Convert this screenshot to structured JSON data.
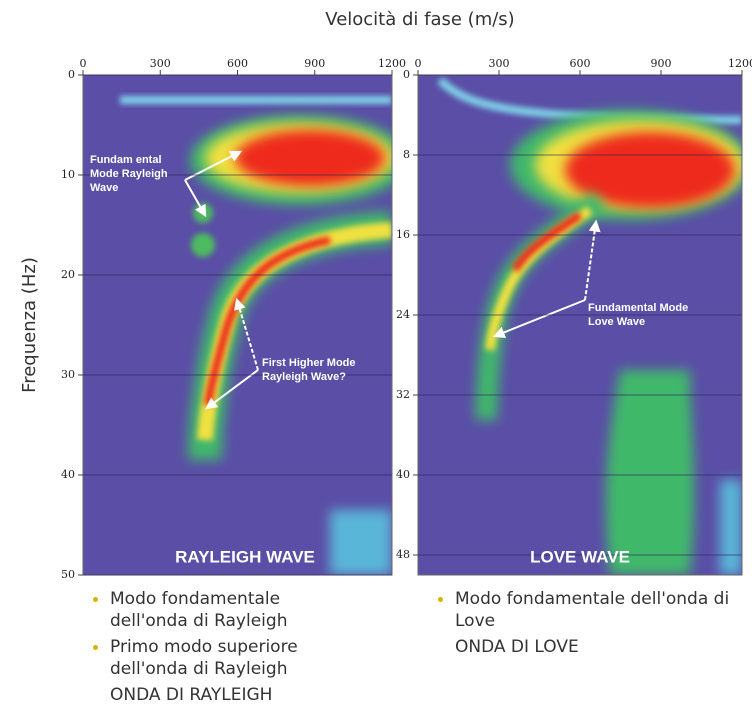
{
  "axis_titles": {
    "x": "Velocità di fase (m/s)",
    "y": "Frequenza (Hz)"
  },
  "chart_data": [
    {
      "type": "spectrum",
      "title": "RAYLEIGH WAVE",
      "xlim": [
        0,
        1200
      ],
      "xticks": [
        0,
        300,
        600,
        900,
        1200
      ],
      "ylim": [
        0,
        50
      ],
      "yticks": [
        0,
        10,
        20,
        30,
        40,
        50
      ],
      "grid": true,
      "annotations": [
        [
          "Fundam ental",
          "Mode Rayleigh",
          "Wave"
        ],
        [
          "First Higher Mode",
          "Rayleigh Wave?"
        ]
      ]
    },
    {
      "type": "spectrum",
      "title": "LOVE WAVE",
      "xlim": [
        0,
        1200
      ],
      "xticks": [
        0,
        300,
        600,
        900,
        1200
      ],
      "ylim": [
        0,
        50
      ],
      "yticks": [
        0,
        8,
        16,
        24,
        32,
        40,
        48
      ],
      "grid": true,
      "annotations": [
        [
          "Fundamental Mode",
          "Love Wave"
        ]
      ]
    }
  ],
  "captions": [
    {
      "bullets": [
        "Modo fondamentale dell'onda di Rayleigh",
        "Primo modo superiore dell'onda di Rayleigh"
      ],
      "label": "ONDA DI RAYLEIGH"
    },
    {
      "bullets": [
        "Modo fondamentale dell'onda di Love"
      ],
      "label": "ONDA DI LOVE"
    }
  ]
}
